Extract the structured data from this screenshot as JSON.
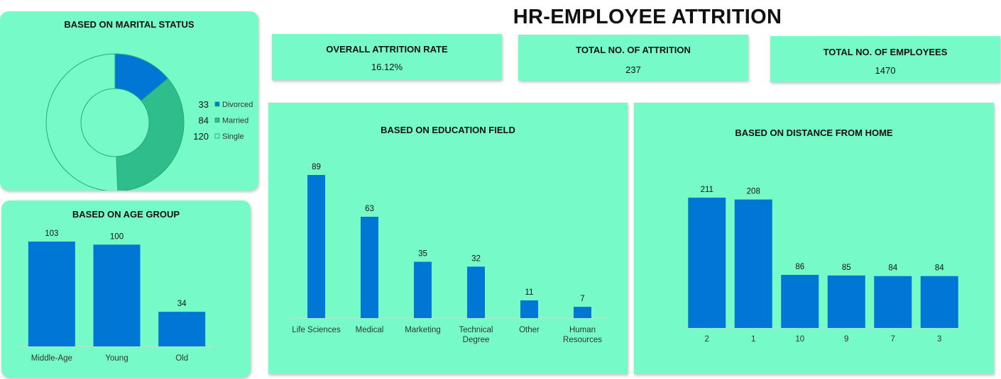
{
  "dashboard": {
    "title": "HR-EMPLOYEE ATTRITION"
  },
  "kpis": [
    {
      "label": "OVERALL ATTRITION RATE",
      "value": "16.12%"
    },
    {
      "label": "TOTAL NO. OF ATTRITION",
      "value": "237"
    },
    {
      "label": "TOTAL NO. OF EMPLOYEES",
      "value": "1470"
    }
  ],
  "colors": {
    "card": "#76fbc8",
    "bar": "#0077d4",
    "divorced": "#0077d4",
    "married": "#2dbe8c",
    "single": "#76fbc8"
  },
  "chart_data": [
    {
      "id": "marital",
      "type": "pie",
      "title": "BASED ON MARITAL STATUS",
      "categories": [
        "Divorced",
        "Married",
        "Single"
      ],
      "values": [
        33,
        84,
        120
      ],
      "legend": "right"
    },
    {
      "id": "age",
      "type": "bar",
      "title": "BASED ON AGE GROUP",
      "categories": [
        "Middle-Age",
        "Young",
        "Old"
      ],
      "values": [
        103,
        100,
        34
      ]
    },
    {
      "id": "education",
      "type": "bar",
      "title": "BASED ON EDUCATION FIELD",
      "categories": [
        "Life Sciences",
        "Medical",
        "Marketing",
        "Technical Degree",
        "Other",
        "Human Resources"
      ],
      "values": [
        89,
        63,
        35,
        32,
        11,
        7
      ]
    },
    {
      "id": "distance",
      "type": "bar",
      "title": "BASED ON DISTANCE FROM  HOME",
      "categories": [
        "2",
        "1",
        "10",
        "9",
        "7",
        "3"
      ],
      "values": [
        211,
        208,
        86,
        85,
        84,
        84
      ]
    }
  ]
}
